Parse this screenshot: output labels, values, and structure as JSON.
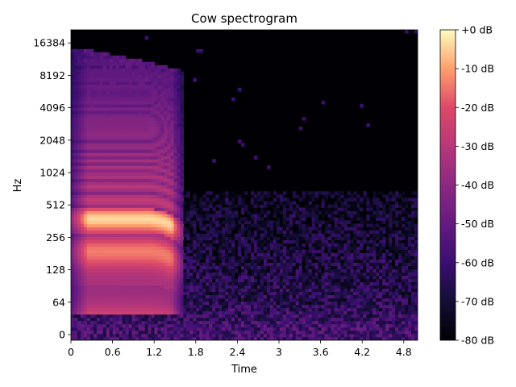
{
  "chart_data": {
    "type": "heatmap",
    "title": "Cow spectrogram",
    "xlabel": "Time",
    "ylabel": "Hz",
    "x_ticks": [
      0,
      0.6,
      1.2,
      1.8,
      2.4,
      3,
      3.6,
      4.2,
      4.8
    ],
    "x_tick_labels": [
      "0",
      "0.6",
      "1.2",
      "1.8",
      "2.4",
      "3",
      "3.6",
      "4.2",
      "4.8"
    ],
    "xlim": [
      0,
      5.0
    ],
    "y_scale": "symlog",
    "y_ticks": [
      0,
      64,
      128,
      256,
      512,
      1024,
      2048,
      4096,
      8192,
      16384
    ],
    "y_tick_labels": [
      "0",
      "64",
      "128",
      "256",
      "512",
      "1024",
      "2048",
      "4096",
      "8192",
      "16384"
    ],
    "ylim": [
      0,
      22050
    ],
    "colorbar": {
      "colormap": "magma",
      "range": [
        -80,
        0
      ],
      "ticks": [
        0,
        -10,
        -20,
        -30,
        -40,
        -50,
        -60,
        -70,
        -80
      ],
      "tick_labels": [
        "+0 dB",
        "-10 dB",
        "-20 dB",
        "-30 dB",
        "-40 dB",
        "-50 dB",
        "-60 dB",
        "-70 dB",
        "-80 dB"
      ]
    },
    "content": {
      "call_start": 0.0,
      "call_end": 1.45,
      "fundamental_hz": 190,
      "harmonic_ceiling_hz": 14000,
      "noise_floor_db": -80
    }
  }
}
